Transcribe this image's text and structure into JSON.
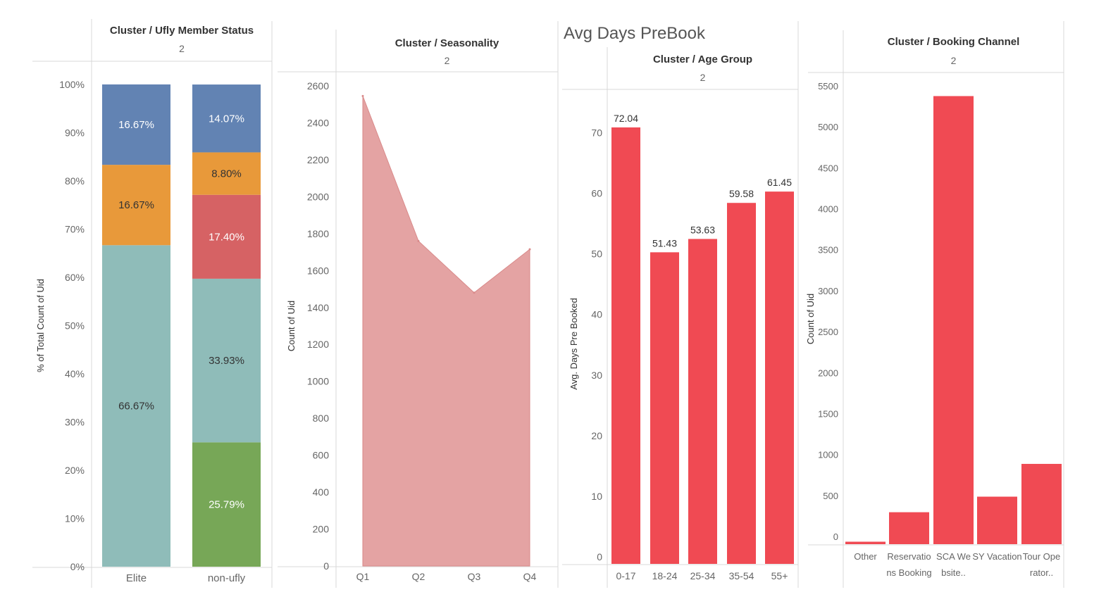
{
  "dashboard_title": "Avg Days PreBook",
  "chart_data": [
    {
      "type": "bar",
      "stacked": true,
      "header": "Cluster / Ufly Member Status",
      "subheader": "2",
      "ylabel": "% of Total Count of Uid",
      "ylim": [
        0,
        100
      ],
      "yticks": [
        "0%",
        "10%",
        "20%",
        "30%",
        "40%",
        "50%",
        "60%",
        "70%",
        "80%",
        "90%",
        "100%"
      ],
      "categories": [
        "Elite",
        "non-ufly"
      ],
      "series": [
        {
          "color": "#77a757",
          "values": [
            0,
            25.79
          ],
          "labels": [
            "",
            "25.79%"
          ]
        },
        {
          "color": "#8fbcb9",
          "values": [
            66.67,
            33.93
          ],
          "labels": [
            "66.67%",
            "33.93%"
          ]
        },
        {
          "color": "#d66264",
          "values": [
            0,
            17.4
          ],
          "labels": [
            "",
            "17.40%"
          ]
        },
        {
          "color": "#e8993a",
          "values": [
            16.67,
            8.8
          ],
          "labels": [
            "16.67%",
            "8.80%"
          ]
        },
        {
          "color": "#6283b3",
          "values": [
            16.67,
            14.07
          ],
          "labels": [
            "16.67%",
            "14.07%"
          ]
        }
      ]
    },
    {
      "type": "area",
      "header": "Cluster / Seasonality",
      "subheader": "2",
      "ylabel": "Count of Uid",
      "ylim": [
        0,
        2600
      ],
      "yticks": [
        "0",
        "200",
        "400",
        "600",
        "800",
        "1000",
        "1200",
        "1400",
        "1600",
        "1800",
        "2000",
        "2200",
        "2400",
        "2600"
      ],
      "categories": [
        "Q1",
        "Q2",
        "Q3",
        "Q4"
      ],
      "values": [
        2545,
        1760,
        1480,
        1715
      ],
      "color": "#e4a3a3"
    },
    {
      "type": "bar",
      "header": "Cluster / Age Group",
      "subheader": "2",
      "ylabel": "Avg. Days Pre Booked",
      "ylim": [
        0,
        72.5
      ],
      "yticks": [
        "0",
        "10",
        "20",
        "30",
        "40",
        "50",
        "60",
        "70"
      ],
      "categories": [
        "0-17",
        "18-24",
        "25-34",
        "35-54",
        "55+"
      ],
      "values": [
        72.04,
        51.43,
        53.63,
        59.58,
        61.45
      ],
      "labels": [
        "72.04",
        "51.43",
        "53.63",
        "59.58",
        "61.45"
      ],
      "color": "#f04a53"
    },
    {
      "type": "bar",
      "header": "Cluster / Booking Channel",
      "subheader": "2",
      "ylabel": "Count of Uid",
      "ylim": [
        0,
        5500
      ],
      "yticks": [
        "0",
        "500",
        "1000",
        "1500",
        "2000",
        "2500",
        "3000",
        "3500",
        "4000",
        "4500",
        "5000",
        "5500"
      ],
      "categories": [
        [
          "Other"
        ],
        [
          "Reservatio",
          "ns Booking"
        ],
        [
          "SCA We",
          "bsite.."
        ],
        [
          "SY Vacation"
        ],
        [
          "Tour Ope",
          "rator.."
        ]
      ],
      "values": [
        30,
        390,
        5470,
        580,
        980
      ],
      "color": "#f04a53"
    }
  ]
}
